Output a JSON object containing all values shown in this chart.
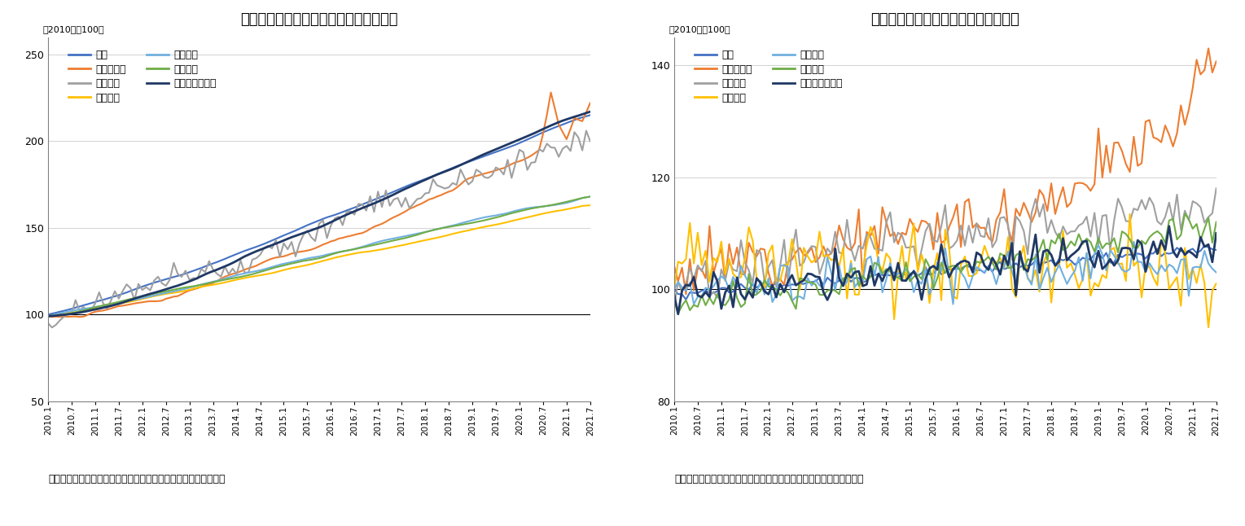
{
  "title1": "図表２　不動産価格指数（マンション）",
  "title2": "図表３　不動産価格指数（戸建住宅）",
  "subtitle": "（2010年＝100）",
  "caption1": "（資料）　国土交通省の公表資料からニッセイ基礎研究所が作成",
  "caption2": "（資料）　国土交通省の公表資料をもとにニッセイ基礎研究所が作成",
  "legend_labels": [
    "全国",
    "北海道地方",
    "東北地方",
    "南関東圈",
    "名古屋圈",
    "京阪神圈",
    "九州・沖縄地方"
  ],
  "colors": [
    "#4472C4",
    "#ED7D31",
    "#A0A0A0",
    "#FFC000",
    "#70B0E0",
    "#70AD47",
    "#1F3864"
  ],
  "linewidths": [
    1.5,
    1.5,
    1.5,
    1.5,
    1.5,
    1.5,
    2.0
  ],
  "chart1_ylim": [
    50,
    260
  ],
  "chart1_yticks": [
    50,
    100,
    150,
    200,
    250
  ],
  "chart2_ylim": [
    80,
    145
  ],
  "chart2_yticks": [
    80,
    100,
    120,
    140
  ],
  "background_color": "#FFFFFF",
  "grid_color": "#C0C0C0"
}
